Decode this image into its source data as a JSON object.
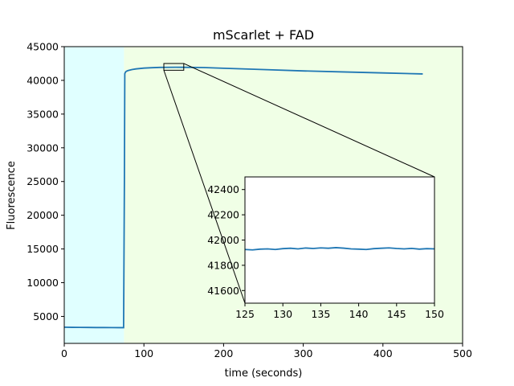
{
  "chart_data": [
    {
      "type": "line",
      "title": "mScarlet + FAD",
      "xlabel": "time (seconds)",
      "ylabel": "Fluorescence",
      "xlim": [
        0,
        500
      ],
      "ylim": [
        1000,
        45000
      ],
      "xticks": [
        0,
        100,
        200,
        300,
        400,
        500
      ],
      "yticks": [
        5000,
        10000,
        15000,
        20000,
        25000,
        30000,
        35000,
        40000,
        45000
      ],
      "background_regions": [
        {
          "x_range": [
            0,
            75
          ],
          "color": "#e0ffff"
        },
        {
          "x_range": [
            75,
            500
          ],
          "color": "#f0ffe6"
        }
      ],
      "line_color": "#1f77b4",
      "grid": false,
      "series": [
        {
          "x": [
            0,
            10,
            20,
            30,
            40,
            50,
            60,
            70,
            74.5,
            75.5,
            76,
            77,
            78,
            80,
            85,
            90,
            100,
            110,
            120,
            125,
            140,
            150,
            175,
            200,
            250,
            300,
            350,
            400,
            450
          ],
          "values": [
            3400,
            3380,
            3370,
            3360,
            3350,
            3345,
            3340,
            3330,
            3330,
            25000,
            41000,
            41250,
            41350,
            41450,
            41600,
            41700,
            41820,
            41880,
            41920,
            41930,
            41940,
            41935,
            41900,
            41800,
            41600,
            41400,
            41250,
            41100,
            40950
          ]
        }
      ]
    },
    {
      "type": "line",
      "role": "inset-zoom",
      "xlim": [
        125,
        150
      ],
      "ylim": [
        41500,
        42500
      ],
      "xticks": [
        125,
        130,
        135,
        140,
        145,
        150
      ],
      "yticks": [
        41600,
        41800,
        42000,
        42200,
        42400
      ],
      "line_color": "#1f77b4",
      "series": [
        {
          "x": [
            125,
            126,
            127,
            128,
            129,
            130,
            131,
            132,
            133,
            134,
            135,
            136,
            137,
            138,
            139,
            140,
            141,
            142,
            143,
            144,
            145,
            146,
            147,
            148,
            149,
            150
          ],
          "values": [
            41925,
            41922,
            41928,
            41930,
            41925,
            41932,
            41935,
            41930,
            41937,
            41933,
            41938,
            41935,
            41940,
            41936,
            41930,
            41928,
            41925,
            41932,
            41935,
            41938,
            41933,
            41930,
            41934,
            41928,
            41932,
            41930
          ]
        }
      ]
    }
  ]
}
